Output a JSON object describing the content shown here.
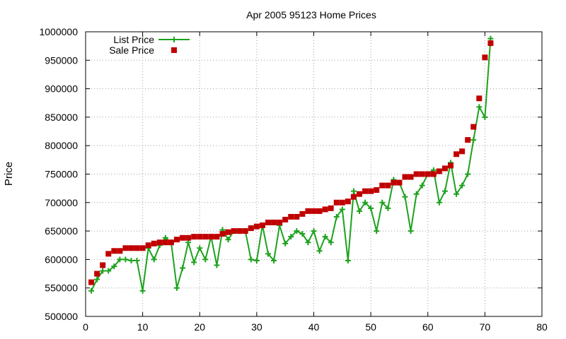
{
  "chart_data": {
    "type": "line",
    "title": "Apr 2005 95123 Home Prices",
    "xlabel": "",
    "ylabel": "Price",
    "xlim": [
      0,
      80
    ],
    "ylim": [
      500000,
      1000000
    ],
    "x_ticks": [
      0,
      10,
      20,
      30,
      40,
      50,
      60,
      70,
      80
    ],
    "y_ticks": [
      500000,
      550000,
      600000,
      650000,
      700000,
      750000,
      800000,
      850000,
      900000,
      950000,
      1000000
    ],
    "grid": true,
    "legend_position": "top-left",
    "x": [
      1,
      2,
      3,
      4,
      5,
      6,
      7,
      8,
      9,
      10,
      11,
      12,
      13,
      14,
      15,
      16,
      17,
      18,
      19,
      20,
      21,
      22,
      23,
      24,
      25,
      26,
      27,
      28,
      29,
      30,
      31,
      32,
      33,
      34,
      35,
      36,
      37,
      38,
      39,
      40,
      41,
      42,
      43,
      44,
      45,
      46,
      47,
      48,
      49,
      50,
      51,
      52,
      53,
      54,
      55,
      56,
      57,
      58,
      59,
      60,
      61,
      62,
      63,
      64,
      65,
      66,
      67,
      68,
      69,
      70,
      71
    ],
    "series": [
      {
        "name": "List Price",
        "style": "line-plus",
        "color": "#1ca21c",
        "values": [
          545000,
          565000,
          580000,
          580000,
          588000,
          600000,
          600000,
          598000,
          598000,
          545000,
          620000,
          600000,
          625000,
          638000,
          630000,
          550000,
          585000,
          630000,
          595000,
          620000,
          600000,
          640000,
          590000,
          652000,
          635000,
          650000,
          650000,
          650000,
          600000,
          598000,
          660000,
          610000,
          598000,
          660000,
          628000,
          640000,
          650000,
          645000,
          630000,
          650000,
          615000,
          640000,
          630000,
          675000,
          688000,
          598000,
          720000,
          685000,
          700000,
          690000,
          650000,
          700000,
          690000,
          740000,
          735000,
          710000,
          650000,
          715000,
          730000,
          750000,
          757000,
          700000,
          720000,
          770000,
          715000,
          730000,
          750000,
          810000,
          868000,
          850000,
          988000
        ]
      },
      {
        "name": "Sale Price",
        "style": "square-markers",
        "color": "#c00000",
        "values": [
          560000,
          575000,
          590000,
          610000,
          615000,
          615000,
          620000,
          620000,
          620000,
          620000,
          625000,
          628000,
          630000,
          630000,
          630000,
          635000,
          638000,
          638000,
          640000,
          640000,
          640000,
          640000,
          640000,
          645000,
          648000,
          650000,
          650000,
          650000,
          655000,
          658000,
          660000,
          665000,
          665000,
          665000,
          670000,
          675000,
          675000,
          680000,
          685000,
          685000,
          685000,
          688000,
          690000,
          700000,
          700000,
          702000,
          710000,
          715000,
          720000,
          720000,
          722000,
          730000,
          730000,
          735000,
          735000,
          745000,
          745000,
          750000,
          750000,
          750000,
          750000,
          755000,
          760000,
          765000,
          785000,
          790000,
          810000,
          833000,
          883000,
          955000,
          980000
        ]
      }
    ]
  }
}
